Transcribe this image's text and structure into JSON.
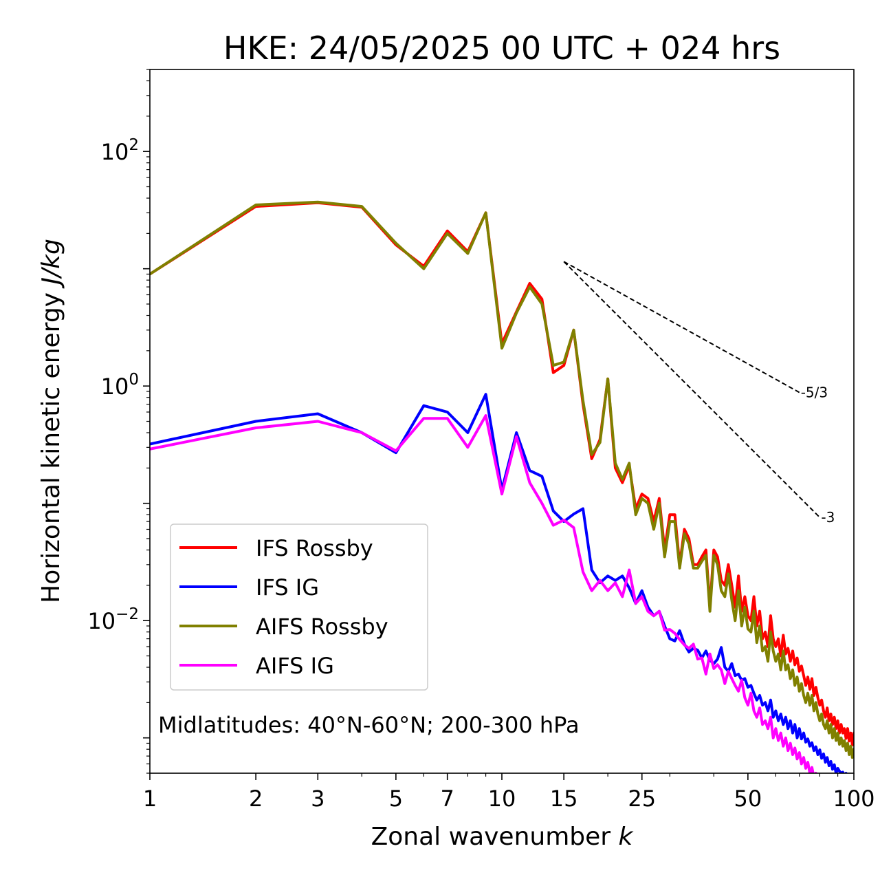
{
  "chart_data": {
    "type": "line",
    "title": "HKE: 24/05/2025 00 UTC + 024 hrs",
    "xlabel": "Zonal wavenumber ",
    "xlabel_var": "k",
    "ylabel": "Horizontal kinetic energy ",
    "ylabel_unit": "J/kg",
    "xscale": "log",
    "yscale": "log",
    "xlim": [
      1,
      100
    ],
    "ylim": [
      0.0005,
      500
    ],
    "grid": false,
    "legend_position": "lower-left",
    "xticks": [
      1,
      2,
      3,
      5,
      7,
      10,
      15,
      25,
      50,
      100
    ],
    "xtick_labels": [
      "1",
      "2",
      "3",
      "5",
      "7",
      "10",
      "15",
      "25",
      "50",
      "100"
    ],
    "yticks": [
      {
        "value": 100,
        "base": "10",
        "exp": "2"
      },
      {
        "value": 1,
        "base": "10",
        "exp": "0"
      },
      {
        "value": 0.01,
        "base": "10",
        "exp": "−2"
      }
    ],
    "annotation": "Midlatitudes: 40°N-60°N; 200-300 hPa",
    "reference_slopes": [
      {
        "label": "-5/3",
        "slope": -1.6667,
        "x_start": 15,
        "y_start": 11.5,
        "x_end": 70
      },
      {
        "label": "-3",
        "slope": -3,
        "x_start": 15,
        "y_start": 11.5,
        "x_end": 80
      }
    ],
    "series": [
      {
        "name": "IFS Rossby",
        "color": "#ff0000",
        "x": [
          1,
          2,
          3,
          4,
          5,
          6,
          7,
          8,
          9,
          10,
          11,
          12,
          13,
          14,
          15,
          16,
          17,
          18,
          19,
          20,
          21,
          22,
          23,
          24,
          25,
          26,
          27,
          28,
          29,
          30,
          31,
          32,
          33,
          34,
          35,
          36,
          37,
          38,
          39,
          40,
          41,
          42,
          43,
          44,
          45,
          46,
          47,
          48,
          49,
          50,
          51,
          52,
          53,
          54,
          55,
          56,
          57,
          58,
          59,
          60,
          61,
          62,
          63,
          64,
          65,
          66,
          67,
          68,
          69,
          70,
          71,
          72,
          73,
          74,
          75,
          76,
          77,
          78,
          79,
          80,
          81,
          82,
          83,
          84,
          85,
          86,
          87,
          88,
          89,
          90,
          91,
          92,
          93,
          94,
          95,
          96,
          97,
          98,
          99,
          100
        ],
        "values": [
          9.0,
          34.0,
          36.5,
          33.5,
          16.0,
          10.5,
          21.0,
          14.0,
          30.0,
          2.3,
          4.3,
          7.5,
          5.5,
          1.3,
          1.5,
          3.0,
          0.7,
          0.24,
          0.35,
          1.15,
          0.2,
          0.15,
          0.21,
          0.09,
          0.12,
          0.11,
          0.07,
          0.11,
          0.04,
          0.08,
          0.08,
          0.03,
          0.06,
          0.05,
          0.03,
          0.03,
          0.035,
          0.04,
          0.013,
          0.04,
          0.035,
          0.022,
          0.02,
          0.03,
          0.02,
          0.013,
          0.024,
          0.012,
          0.016,
          0.011,
          0.01,
          0.016,
          0.009,
          0.012,
          0.007,
          0.008,
          0.006,
          0.011,
          0.007,
          0.006,
          0.007,
          0.005,
          0.0075,
          0.0052,
          0.0058,
          0.0045,
          0.0055,
          0.0042,
          0.0048,
          0.0037,
          0.0041,
          0.0034,
          0.0028,
          0.0033,
          0.0026,
          0.0032,
          0.0023,
          0.0027,
          0.0022,
          0.0019,
          0.0021,
          0.0017,
          0.0015,
          0.0018,
          0.0014,
          0.0016,
          0.0013,
          0.0015,
          0.0012,
          0.0014,
          0.0011,
          0.0013,
          0.0011,
          0.0012,
          0.00099,
          0.0012,
          0.00094,
          0.0011,
          0.00087,
          0.0011
        ]
      },
      {
        "name": "IFS IG",
        "color": "#0000ff",
        "x": [
          1,
          2,
          3,
          4,
          5,
          6,
          7,
          8,
          9,
          10,
          11,
          12,
          13,
          14,
          15,
          16,
          17,
          18,
          19,
          20,
          21,
          22,
          23,
          24,
          25,
          26,
          27,
          28,
          29,
          30,
          31,
          32,
          33,
          34,
          35,
          36,
          37,
          38,
          39,
          40,
          41,
          42,
          43,
          44,
          45,
          46,
          47,
          48,
          49,
          50,
          51,
          52,
          53,
          54,
          55,
          56,
          57,
          58,
          59,
          60,
          61,
          62,
          63,
          64,
          65,
          66,
          67,
          68,
          69,
          70,
          71,
          72,
          73,
          74,
          75,
          76,
          77,
          78,
          79,
          80,
          81,
          82,
          83,
          84,
          85,
          86,
          87,
          88,
          89,
          90,
          91,
          92,
          93,
          94,
          95,
          96,
          97,
          98,
          99,
          100
        ],
        "values": [
          0.32,
          0.5,
          0.58,
          0.4,
          0.27,
          0.68,
          0.6,
          0.4,
          0.85,
          0.13,
          0.4,
          0.19,
          0.17,
          0.086,
          0.07,
          0.081,
          0.09,
          0.027,
          0.021,
          0.024,
          0.022,
          0.024,
          0.019,
          0.014,
          0.018,
          0.013,
          0.011,
          0.012,
          0.009,
          0.007,
          0.0067,
          0.0082,
          0.0063,
          0.0054,
          0.0058,
          0.0056,
          0.0048,
          0.0055,
          0.0046,
          0.0043,
          0.0047,
          0.0059,
          0.004,
          0.0037,
          0.0043,
          0.0034,
          0.0035,
          0.0031,
          0.0032,
          0.0027,
          0.0028,
          0.0024,
          0.0021,
          0.0023,
          0.0019,
          0.002,
          0.0017,
          0.0021,
          0.0015,
          0.0017,
          0.0014,
          0.0016,
          0.0013,
          0.0015,
          0.0012,
          0.0014,
          0.0011,
          0.0013,
          0.001,
          0.0012,
          0.00098,
          0.0011,
          0.00092,
          0.00098,
          0.00085,
          0.00091,
          0.00078,
          0.00084,
          0.00072,
          0.00079,
          0.00067,
          0.00073,
          0.00062,
          0.00068,
          0.00058,
          0.00063,
          0.00054,
          0.00059,
          0.0005,
          0.00055,
          0.00052,
          0.0005,
          0.00051,
          0.00048,
          0.0005,
          0.00047,
          0.00049,
          0.00046,
          0.00048,
          0.00045
        ]
      },
      {
        "name": "AIFS Rossby",
        "color": "#808000",
        "x": [
          1,
          2,
          3,
          4,
          5,
          6,
          7,
          8,
          9,
          10,
          11,
          12,
          13,
          14,
          15,
          16,
          17,
          18,
          19,
          20,
          21,
          22,
          23,
          24,
          25,
          26,
          27,
          28,
          29,
          30,
          31,
          32,
          33,
          34,
          35,
          36,
          37,
          38,
          39,
          40,
          41,
          42,
          43,
          44,
          45,
          46,
          47,
          48,
          49,
          50,
          51,
          52,
          53,
          54,
          55,
          56,
          57,
          58,
          59,
          60,
          61,
          62,
          63,
          64,
          65,
          66,
          67,
          68,
          69,
          70,
          71,
          72,
          73,
          74,
          75,
          76,
          77,
          78,
          79,
          80,
          81,
          82,
          83,
          84,
          85,
          86,
          87,
          88,
          89,
          90,
          91,
          92,
          93,
          94,
          95,
          96,
          97,
          98,
          99,
          100
        ],
        "values": [
          9.0,
          35.0,
          37.0,
          34.0,
          16.5,
          10.0,
          20.0,
          13.5,
          30.0,
          2.1,
          4.2,
          7.0,
          5.0,
          1.5,
          1.6,
          3.0,
          0.75,
          0.26,
          0.33,
          1.15,
          0.22,
          0.16,
          0.22,
          0.08,
          0.11,
          0.1,
          0.06,
          0.1,
          0.035,
          0.07,
          0.07,
          0.028,
          0.055,
          0.045,
          0.028,
          0.028,
          0.032,
          0.036,
          0.012,
          0.036,
          0.03,
          0.018,
          0.016,
          0.025,
          0.015,
          0.01,
          0.018,
          0.009,
          0.013,
          0.0085,
          0.008,
          0.012,
          0.0065,
          0.009,
          0.0055,
          0.006,
          0.0045,
          0.008,
          0.0055,
          0.0045,
          0.0052,
          0.0038,
          0.0055,
          0.0038,
          0.0042,
          0.0032,
          0.0038,
          0.0028,
          0.0033,
          0.0025,
          0.0029,
          0.0023,
          0.002,
          0.0024,
          0.0019,
          0.0023,
          0.0017,
          0.002,
          0.0016,
          0.0014,
          0.0016,
          0.0013,
          0.0012,
          0.0014,
          0.0011,
          0.0013,
          0.001,
          0.0012,
          0.00095,
          0.0011,
          0.00088,
          0.001,
          0.00085,
          0.00095,
          0.00078,
          0.0009,
          0.00072,
          0.00085,
          0.00068,
          0.0008
        ]
      },
      {
        "name": "AIFS IG",
        "color": "#ff00ff",
        "x": [
          1,
          2,
          3,
          4,
          5,
          6,
          7,
          8,
          9,
          10,
          11,
          12,
          13,
          14,
          15,
          16,
          17,
          18,
          19,
          20,
          21,
          22,
          23,
          24,
          25,
          26,
          27,
          28,
          29,
          30,
          31,
          32,
          33,
          34,
          35,
          36,
          37,
          38,
          39,
          40,
          41,
          42,
          43,
          44,
          45,
          46,
          47,
          48,
          49,
          50,
          51,
          52,
          53,
          54,
          55,
          56,
          57,
          58,
          59,
          60,
          61,
          62,
          63,
          64,
          65,
          66,
          67,
          68,
          69,
          70,
          71,
          72,
          73,
          74,
          75,
          76,
          77,
          78,
          79,
          80,
          81,
          82,
          83,
          84,
          85,
          86,
          87,
          88,
          89,
          90,
          91,
          92,
          93,
          94,
          95,
          96,
          97,
          98,
          99,
          100
        ],
        "values": [
          0.29,
          0.44,
          0.5,
          0.4,
          0.28,
          0.53,
          0.53,
          0.3,
          0.56,
          0.12,
          0.37,
          0.15,
          0.1,
          0.065,
          0.072,
          0.062,
          0.026,
          0.018,
          0.022,
          0.018,
          0.021,
          0.016,
          0.027,
          0.014,
          0.016,
          0.012,
          0.011,
          0.012,
          0.0083,
          0.0084,
          0.0078,
          0.0069,
          0.0062,
          0.0058,
          0.0063,
          0.0047,
          0.0048,
          0.0035,
          0.0052,
          0.0039,
          0.0042,
          0.0038,
          0.0029,
          0.0037,
          0.0032,
          0.0028,
          0.0025,
          0.0031,
          0.0022,
          0.0019,
          0.0024,
          0.0017,
          0.0015,
          0.0018,
          0.0013,
          0.0014,
          0.0012,
          0.0015,
          0.001,
          0.0012,
          0.00095,
          0.0011,
          0.00085,
          0.001,
          0.00078,
          0.0009,
          0.00072,
          0.00082,
          0.00066,
          0.00075,
          0.0006,
          0.00068,
          0.00055,
          0.00062,
          0.0005,
          0.00056,
          0.00046,
          0.0005,
          0.00042,
          0.00045,
          0.0004,
          0.00042,
          0.00038,
          0.0004,
          0.00036,
          0.00038,
          0.00035,
          0.00036,
          0.00034,
          0.00035,
          0.00033,
          0.00034,
          0.00032,
          0.00033,
          0.00031,
          0.00032,
          0.0003,
          0.00031,
          0.0003,
          0.0003
        ]
      }
    ]
  }
}
